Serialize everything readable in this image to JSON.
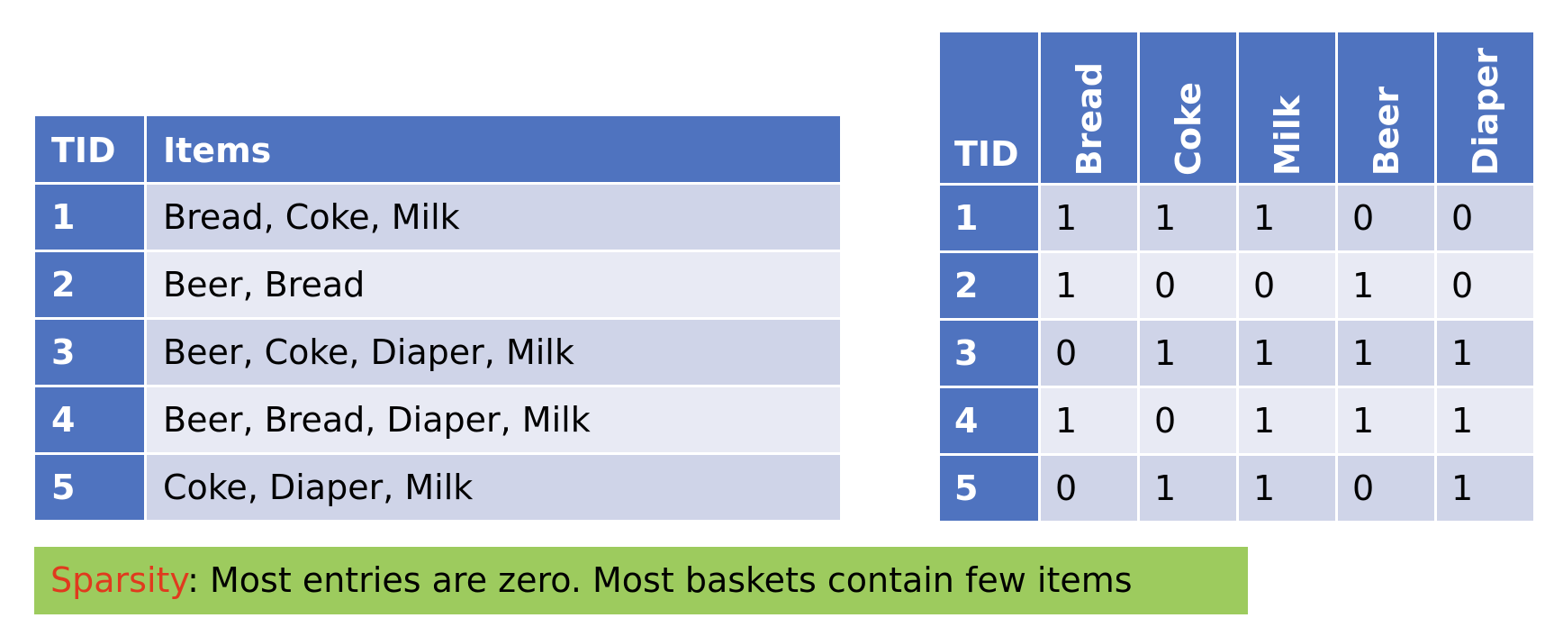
{
  "left_table": {
    "headers": [
      "TID",
      "Items"
    ],
    "rows": [
      {
        "tid": "1",
        "items": "Bread, Coke, Milk"
      },
      {
        "tid": "2",
        "items": "Beer, Bread"
      },
      {
        "tid": "3",
        "items": "Beer, Coke, Diaper, Milk"
      },
      {
        "tid": "4",
        "items": "Beer, Bread, Diaper, Milk"
      },
      {
        "tid": "5",
        "items": "Coke, Diaper, Milk"
      }
    ]
  },
  "right_table": {
    "headers": [
      "TID",
      "Bread",
      "Coke",
      "Milk",
      "Beer",
      "Diaper"
    ],
    "rows": [
      {
        "tid": "1",
        "values": [
          "1",
          "1",
          "1",
          "0",
          "0"
        ]
      },
      {
        "tid": "2",
        "values": [
          "1",
          "0",
          "0",
          "1",
          "0"
        ]
      },
      {
        "tid": "3",
        "values": [
          "0",
          "1",
          "1",
          "1",
          "1"
        ]
      },
      {
        "tid": "4",
        "values": [
          "1",
          "0",
          "1",
          "1",
          "1"
        ]
      },
      {
        "tid": "5",
        "values": [
          "0",
          "1",
          "1",
          "0",
          "1"
        ]
      }
    ]
  },
  "note": {
    "keyword": "Sparsity",
    "text": ": Most entries are zero. Most baskets contain few items"
  },
  "colors": {
    "header_blue": "#4f73bf",
    "row_dark": "#cfd4e8",
    "row_light": "#e8eaf4",
    "note_bg": "#9dcb5e",
    "keyword_red": "#e03a1e"
  }
}
